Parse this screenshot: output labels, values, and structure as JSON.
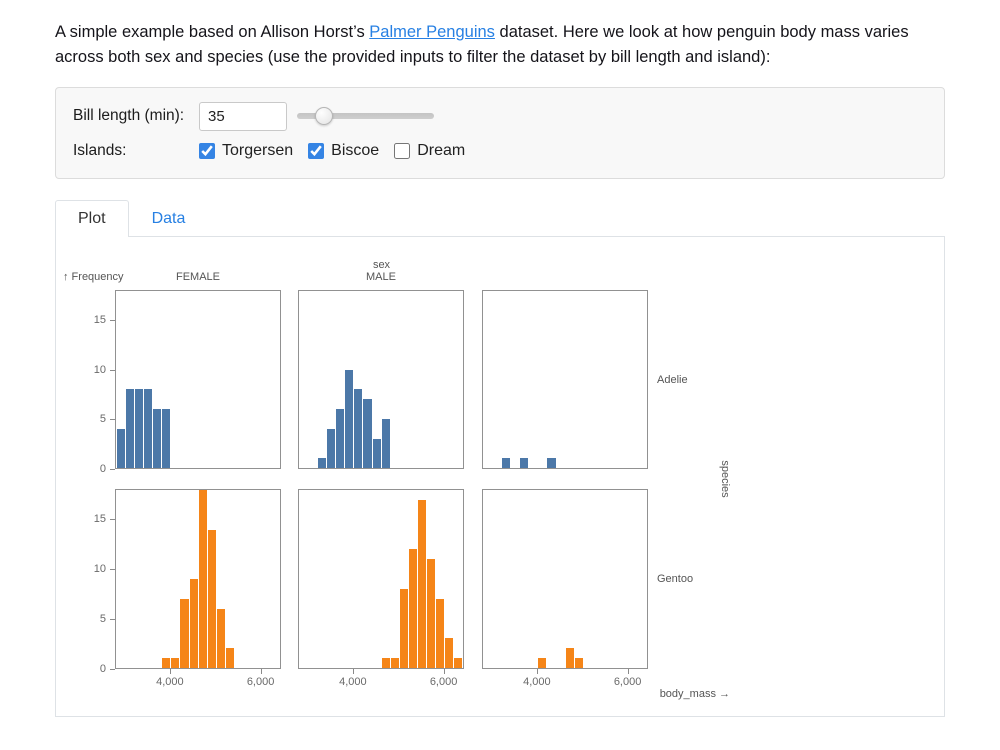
{
  "intro": {
    "text_before": "A simple example based on Allison Horst’s ",
    "link_text": "Palmer Penguins",
    "text_after": " dataset. Here we look at how penguin body mass varies across both sex and species (use the provided inputs to filter the dataset by bill length and island):"
  },
  "filters": {
    "bill_length": {
      "label": "Bill length (min):",
      "value": "35",
      "slider_percent": 20
    },
    "islands": {
      "label": "Islands:",
      "options": [
        {
          "label": "Torgersen",
          "checked": true
        },
        {
          "label": "Biscoe",
          "checked": true
        },
        {
          "label": "Dream",
          "checked": false
        }
      ]
    }
  },
  "tabs": [
    {
      "label": "Plot",
      "active": true
    },
    {
      "label": "Data",
      "active": false
    }
  ],
  "chart_data": {
    "type": "bar",
    "subtype": "faceted-histogram",
    "xlabel": "body_mass →",
    "ylabel": "↑ Frequency",
    "column_title": "sex",
    "row_title": "species",
    "columns": [
      "FEMALE",
      "MALE",
      ""
    ],
    "rows": [
      "Adelie",
      "Gentoo"
    ],
    "x_domain": [
      2790,
      6450
    ],
    "x_ticks": [
      {
        "value": 4000,
        "label": "4,000"
      },
      {
        "value": 6000,
        "label": "6,000"
      }
    ],
    "y_domain": [
      0,
      18
    ],
    "y_ticks": [
      0,
      5,
      10,
      15
    ],
    "bin_width": 200,
    "series_colors": {
      "Adelie": "#4c78a8",
      "Gentoo": "#f58518"
    },
    "grid": false,
    "legend": "none",
    "facets": [
      {
        "row": "Adelie",
        "col": "FEMALE",
        "bins": [
          {
            "x": 2800,
            "count": 4
          },
          {
            "x": 3000,
            "count": 8
          },
          {
            "x": 3200,
            "count": 8
          },
          {
            "x": 3400,
            "count": 8
          },
          {
            "x": 3600,
            "count": 6
          },
          {
            "x": 3800,
            "count": 6
          }
        ]
      },
      {
        "row": "Adelie",
        "col": "MALE",
        "bins": [
          {
            "x": 3200,
            "count": 1
          },
          {
            "x": 3400,
            "count": 4
          },
          {
            "x": 3600,
            "count": 6
          },
          {
            "x": 3800,
            "count": 10
          },
          {
            "x": 4000,
            "count": 8
          },
          {
            "x": 4200,
            "count": 7
          },
          {
            "x": 4400,
            "count": 3
          },
          {
            "x": 4600,
            "count": 5
          }
        ]
      },
      {
        "row": "Adelie",
        "col": "",
        "bins": [
          {
            "x": 3200,
            "count": 1
          },
          {
            "x": 3600,
            "count": 1
          },
          {
            "x": 4200,
            "count": 1
          }
        ]
      },
      {
        "row": "Gentoo",
        "col": "FEMALE",
        "bins": [
          {
            "x": 3800,
            "count": 1
          },
          {
            "x": 4000,
            "count": 1
          },
          {
            "x": 4200,
            "count": 7
          },
          {
            "x": 4400,
            "count": 9
          },
          {
            "x": 4600,
            "count": 18
          },
          {
            "x": 4800,
            "count": 14
          },
          {
            "x": 5000,
            "count": 6
          },
          {
            "x": 5200,
            "count": 2
          }
        ]
      },
      {
        "row": "Gentoo",
        "col": "MALE",
        "bins": [
          {
            "x": 4600,
            "count": 1
          },
          {
            "x": 4800,
            "count": 1
          },
          {
            "x": 5000,
            "count": 8
          },
          {
            "x": 5200,
            "count": 12
          },
          {
            "x": 5400,
            "count": 17
          },
          {
            "x": 5600,
            "count": 11
          },
          {
            "x": 5800,
            "count": 7
          },
          {
            "x": 6000,
            "count": 3
          },
          {
            "x": 6200,
            "count": 1
          }
        ]
      },
      {
        "row": "Gentoo",
        "col": "",
        "bins": [
          {
            "x": 4000,
            "count": 1
          },
          {
            "x": 4600,
            "count": 2
          },
          {
            "x": 4800,
            "count": 1
          }
        ]
      }
    ]
  }
}
